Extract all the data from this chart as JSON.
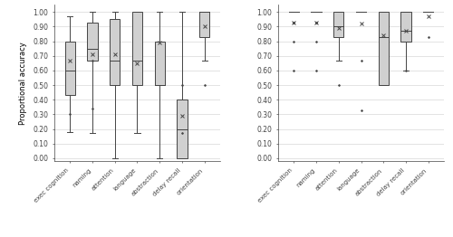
{
  "left": {
    "categories": [
      "exec cognition",
      "naming",
      "attention",
      "language",
      "abstraction",
      "delay recall",
      "orientation"
    ],
    "boxes": [
      {
        "q1": 0.43,
        "median": 0.6,
        "q3": 0.8,
        "whislo": 0.18,
        "whishi": 0.97,
        "mean": 0.67,
        "fliers": [
          0.3
        ]
      },
      {
        "q1": 0.67,
        "median": 0.75,
        "q3": 0.93,
        "whislo": 0.17,
        "whishi": 1.0,
        "mean": 0.71,
        "fliers": [
          0.34,
          0.67
        ]
      },
      {
        "q1": 0.5,
        "median": 0.67,
        "q3": 0.95,
        "whislo": 0.0,
        "whishi": 1.0,
        "mean": 0.71,
        "fliers": []
      },
      {
        "q1": 0.5,
        "median": 0.67,
        "q3": 1.0,
        "whislo": 0.17,
        "whishi": 1.0,
        "mean": 0.65,
        "fliers": []
      },
      {
        "q1": 0.5,
        "median": 0.5,
        "q3": 0.8,
        "whislo": 0.0,
        "whishi": 1.0,
        "mean": 0.79,
        "fliers": []
      },
      {
        "q1": 0.0,
        "median": 0.2,
        "q3": 0.4,
        "whislo": 0.0,
        "whishi": 1.0,
        "mean": 0.29,
        "fliers": [
          0.17,
          0.5
        ]
      },
      {
        "q1": 0.83,
        "median": 1.0,
        "q3": 1.0,
        "whislo": 0.67,
        "whishi": 1.0,
        "mean": 0.9,
        "fliers": [
          0.5
        ]
      }
    ]
  },
  "right": {
    "categories": [
      "exec cognition",
      "naming",
      "attention",
      "language",
      "abstraction",
      "delay recall",
      "orientation"
    ],
    "boxes": [
      {
        "q1": 1.0,
        "median": 1.0,
        "q3": 1.0,
        "whislo": 1.0,
        "whishi": 1.0,
        "mean": 0.93,
        "fliers": [
          0.6,
          0.8,
          0.93
        ]
      },
      {
        "q1": 1.0,
        "median": 1.0,
        "q3": 1.0,
        "whislo": 1.0,
        "whishi": 1.0,
        "mean": 0.93,
        "fliers": [
          0.6,
          0.8,
          0.93
        ]
      },
      {
        "q1": 0.83,
        "median": 0.9,
        "q3": 1.0,
        "whislo": 0.67,
        "whishi": 1.0,
        "mean": 0.89,
        "fliers": [
          0.5
        ]
      },
      {
        "q1": 1.0,
        "median": 1.0,
        "q3": 1.0,
        "whislo": 1.0,
        "whishi": 1.0,
        "mean": 0.92,
        "fliers": [
          0.33,
          0.67
        ]
      },
      {
        "q1": 0.5,
        "median": 0.83,
        "q3": 1.0,
        "whislo": 0.5,
        "whishi": 1.0,
        "mean": 0.84,
        "fliers": []
      },
      {
        "q1": 0.8,
        "median": 0.87,
        "q3": 1.0,
        "whislo": 0.6,
        "whishi": 1.0,
        "mean": 0.87,
        "fliers": [
          0.6
        ]
      },
      {
        "q1": 1.0,
        "median": 1.0,
        "q3": 1.0,
        "whislo": 1.0,
        "whishi": 1.0,
        "mean": 0.97,
        "fliers": [
          0.83
        ]
      }
    ]
  },
  "box_color": "#d0d0d0",
  "box_edge_color": "#444444",
  "median_color": "#444444",
  "whisker_color": "#444444",
  "flier_color": "#444444",
  "mean_color": "#444444",
  "ylim": [
    -0.02,
    1.05
  ],
  "yticks": [
    0.0,
    0.1,
    0.2,
    0.3,
    0.4,
    0.5,
    0.6,
    0.7,
    0.8,
    0.9,
    1.0
  ],
  "ylabel": "Proportional accuracy",
  "grid_color": "#d8d8d8",
  "background_color": "#ffffff",
  "label_fontsize": 5.0,
  "ylabel_fontsize": 6.0,
  "ytick_fontsize": 5.5,
  "box_width": 0.45,
  "linewidth": 0.7
}
